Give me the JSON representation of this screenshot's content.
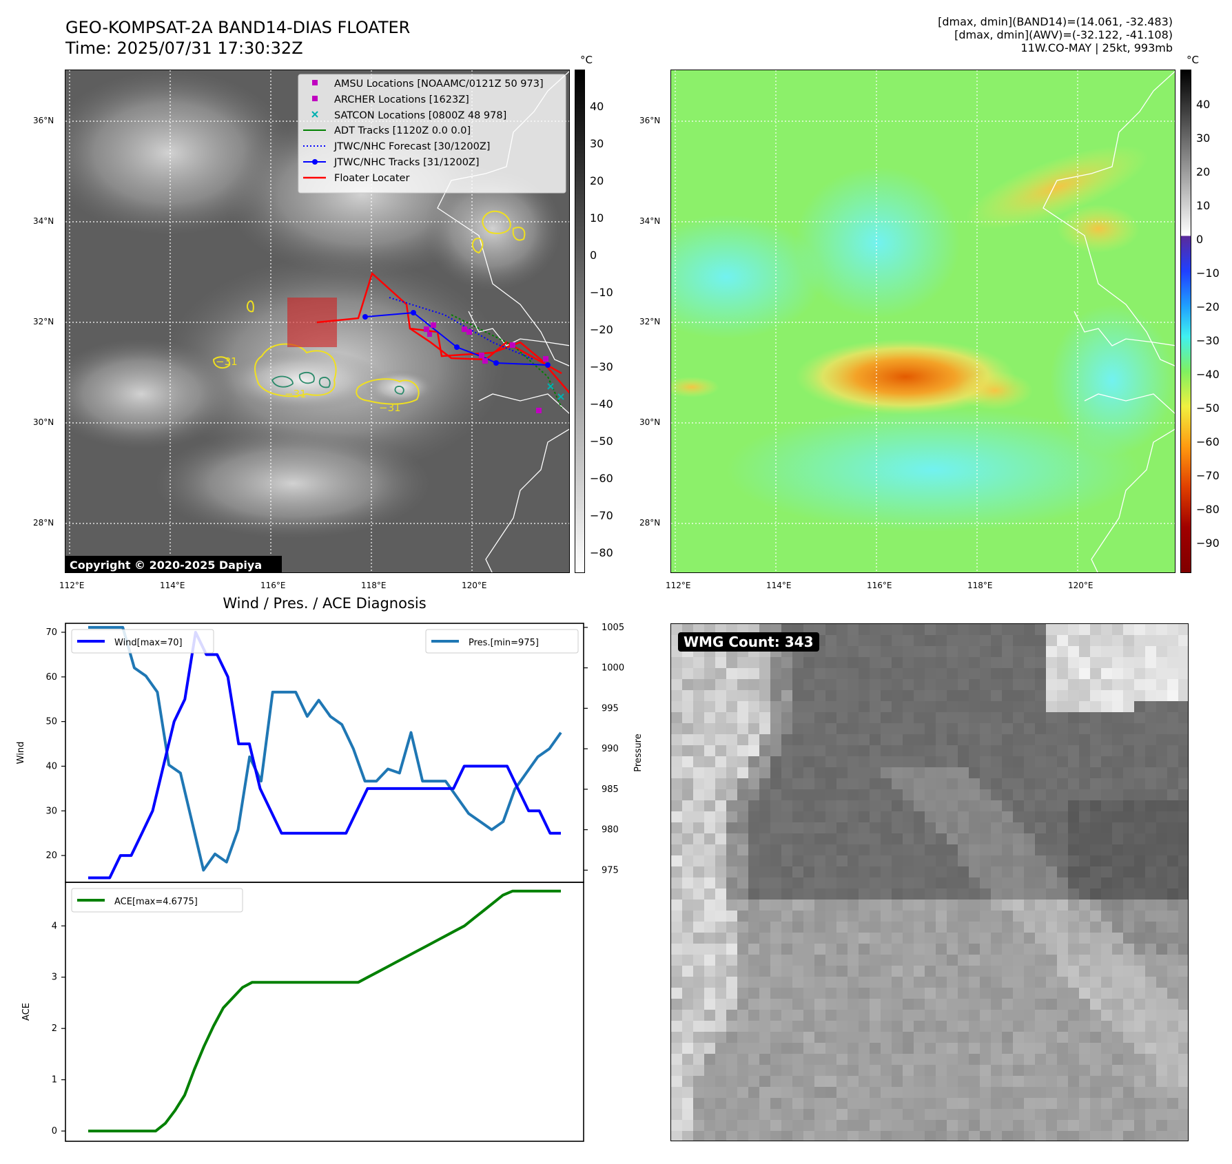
{
  "header": {
    "title_line1": "GEO-KOMPSAT-2A BAND14-DIAS FLOATER",
    "title_line2": "Time: 2025/07/31 17:30:32Z",
    "info_line1": "[dmax, dmin](BAND14)=(14.061, -32.483)",
    "info_line2": "[dmax, dmin](AWV)=(-32.122, -41.108)",
    "info_line3": "11W.CO-MAY | 25kt, 993mb"
  },
  "map_axes": {
    "lon_ticks": [
      "112°E",
      "114°E",
      "116°E",
      "118°E",
      "120°E"
    ],
    "lat_ticks": [
      "36°N",
      "34°N",
      "32°N",
      "30°N",
      "28°N"
    ],
    "colorbar_unit": "°C"
  },
  "colorbar_ir": {
    "ticks": [
      "40",
      "30",
      "20",
      "10",
      "0",
      "−10",
      "−20",
      "−30",
      "−40",
      "−50",
      "−60",
      "−70",
      "−80"
    ]
  },
  "colorbar_wv": {
    "ticks": [
      "40",
      "30",
      "20",
      "10",
      "0",
      "−10",
      "−20",
      "−30",
      "−40",
      "−50",
      "−60",
      "−70",
      "−80",
      "−90"
    ]
  },
  "legend": {
    "items": [
      {
        "label": "AMSU Locations [NOAAMC/0121Z 50 973]",
        "color": "#c000c0"
      },
      {
        "label": "ARCHER Locations [1623Z]",
        "color": "#c000c0"
      },
      {
        "label": "SATCON Locations [0800Z 48 978]",
        "color": "#00b0b0"
      },
      {
        "label": "ADT Tracks [1120Z 0.0 0.0]",
        "color": "#008000"
      },
      {
        "label": "JTWC/NHC Forecast [30/1200Z]",
        "color": "#0000ff"
      },
      {
        "label": "JTWC/NHC Tracks [31/1200Z]",
        "color": "#0000ff"
      },
      {
        "label": "Floater Locater",
        "color": "#ff0000"
      }
    ]
  },
  "contour_labels": [
    "−31",
    "−31",
    "−31"
  ],
  "copyright": "Copyright © 2020-2025 Dapiya",
  "wmg_label": "WMG Count: 343",
  "chart_data": [
    {
      "type": "line",
      "title": "Wind / Pres. / ACE Diagnosis",
      "ylabel": "Wind",
      "y2label": "Pressure",
      "ylim": [
        14,
        72
      ],
      "y2lim": [
        973.5,
        1005.5
      ],
      "yticks": [
        20,
        30,
        40,
        50,
        60,
        70
      ],
      "y2ticks": [
        975,
        980,
        985,
        990,
        995,
        1000,
        1005
      ],
      "series": [
        {
          "name": "Wind[max=70]",
          "color": "#0000ff",
          "axis": "left",
          "values": [
            15,
            15,
            15,
            20,
            20,
            25,
            30,
            40,
            50,
            55,
            70,
            65,
            65,
            60,
            45,
            45,
            35,
            30,
            25,
            25,
            25,
            25,
            25,
            25,
            25,
            30,
            35,
            35,
            35,
            35,
            35,
            35,
            35,
            35,
            35,
            40,
            40,
            40,
            40,
            40,
            35,
            30,
            30,
            25,
            25
          ]
        },
        {
          "name": "Pres.[min=975]",
          "color": "#1f77b4",
          "axis": "right",
          "values": [
            1005,
            1005,
            1005,
            1005,
            1000,
            999,
            997,
            988,
            987,
            981,
            975,
            977,
            976,
            980,
            989,
            986,
            997,
            997,
            997,
            994,
            996,
            994,
            993,
            990,
            986,
            986,
            987.5,
            987,
            992,
            986,
            986,
            986,
            984,
            982,
            981,
            980,
            981,
            985,
            987,
            989,
            990,
            992
          ]
        }
      ]
    },
    {
      "type": "line",
      "ylabel": "ACE",
      "ylim": [
        -0.2,
        4.85
      ],
      "yticks": [
        0,
        1,
        2,
        3,
        4
      ],
      "series": [
        {
          "name": "ACE[max=4.6775]",
          "color": "#008000",
          "values": [
            0,
            0,
            0,
            0,
            0,
            0,
            0,
            0,
            0.15,
            0.4,
            0.7,
            1.2,
            1.65,
            2.05,
            2.4,
            2.6,
            2.8,
            2.9,
            2.9,
            2.9,
            2.9,
            2.9,
            2.9,
            2.9,
            2.9,
            2.9,
            2.9,
            2.9,
            2.9,
            3.0,
            3.1,
            3.2,
            3.3,
            3.4,
            3.5,
            3.6,
            3.7,
            3.8,
            3.9,
            4.0,
            4.15,
            4.3,
            4.45,
            4.6,
            4.68,
            4.68,
            4.68,
            4.68,
            4.68,
            4.68
          ]
        }
      ]
    }
  ]
}
